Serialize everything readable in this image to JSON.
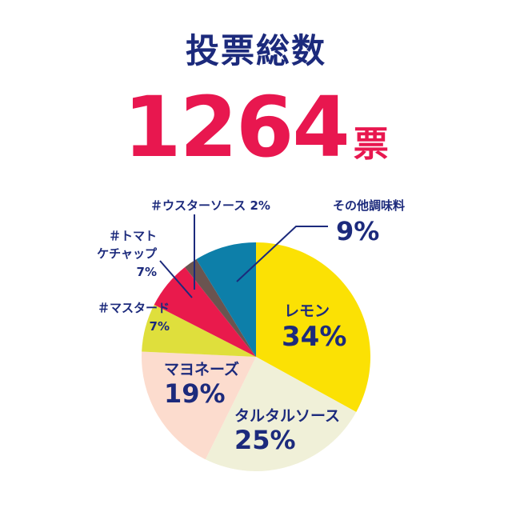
{
  "header": {
    "title": "投票総数",
    "total_value": "1264",
    "total_unit": "票"
  },
  "colors": {
    "title": "#1c2a7c",
    "total": "#e8174f",
    "label": "#1c2a7c"
  },
  "chart_data": {
    "type": "pie",
    "total_votes": 1264,
    "start": "12 o'clock, clockwise",
    "slices": [
      {
        "name": "レモン",
        "value": 34,
        "label": "34%",
        "color": "#fbe104"
      },
      {
        "name": "タルタルソース",
        "value": 25,
        "label": "25%",
        "color": "#f0f0d8"
      },
      {
        "name": "マヨネーズ",
        "value": 19,
        "label": "19%",
        "color": "#fcdcce"
      },
      {
        "name": "＃マスタード",
        "value": 7,
        "label": "7%",
        "color": "#dfdf3c"
      },
      {
        "name": "＃トマトケチャップ",
        "value": 7,
        "label": "7%",
        "color": "#e91a4c"
      },
      {
        "name": "＃ウスターソース",
        "value": 2,
        "label": "2%",
        "color": "#6a5450"
      },
      {
        "name": "その他調味料",
        "value": 9,
        "label": "9%",
        "color": "#0d7fa9"
      }
    ],
    "labels": {
      "lemon_name": "レモン",
      "lemon_pct": "34%",
      "tartar_name": "タルタルソース",
      "tartar_pct": "25%",
      "mayo_name": "マヨネーズ",
      "mayo_pct": "19%",
      "mustard_name": "＃マスタード",
      "mustard_pct": "7%",
      "ketchup_line1": "＃トマト",
      "ketchup_line2": "ケチャップ",
      "ketchup_pct": "7%",
      "worcester": "＃ウスターソース 2%",
      "other_name": "その他調味料",
      "other_pct": "9%"
    }
  }
}
